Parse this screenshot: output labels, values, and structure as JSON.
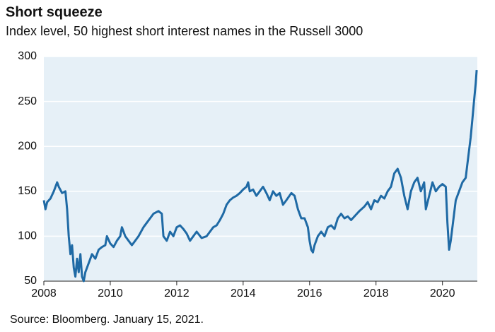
{
  "chart_data": {
    "type": "line",
    "title": "Short squeeze",
    "subtitle": "Index level, 50 highest short interest names in the Russell 3000",
    "source": "Source: Bloomberg. January 15, 2021.",
    "color": "#1f6aa5",
    "background": "#e6f0f7",
    "x": [
      2008.0,
      2008.05,
      2008.1,
      2008.2,
      2008.3,
      2008.4,
      2008.45,
      2008.55,
      2008.65,
      2008.7,
      2008.75,
      2008.8,
      2008.85,
      2008.9,
      2008.95,
      2009.0,
      2009.05,
      2009.1,
      2009.15,
      2009.2,
      2009.25,
      2009.35,
      2009.45,
      2009.55,
      2009.65,
      2009.75,
      2009.85,
      2009.9,
      2010.0,
      2010.1,
      2010.2,
      2010.3,
      2010.35,
      2010.45,
      2010.55,
      2010.65,
      2010.75,
      2010.85,
      2011.0,
      2011.1,
      2011.2,
      2011.3,
      2011.45,
      2011.55,
      2011.6,
      2011.7,
      2011.8,
      2011.9,
      2012.0,
      2012.1,
      2012.2,
      2012.3,
      2012.4,
      2012.5,
      2012.6,
      2012.75,
      2012.9,
      2013.0,
      2013.1,
      2013.2,
      2013.3,
      2013.4,
      2013.5,
      2013.6,
      2013.7,
      2013.8,
      2013.9,
      2014.0,
      2014.1,
      2014.15,
      2014.2,
      2014.3,
      2014.4,
      2014.5,
      2014.6,
      2014.7,
      2014.8,
      2014.9,
      2015.0,
      2015.1,
      2015.2,
      2015.3,
      2015.45,
      2015.55,
      2015.65,
      2015.75,
      2015.85,
      2015.95,
      2016.0,
      2016.05,
      2016.1,
      2016.15,
      2016.25,
      2016.35,
      2016.45,
      2016.55,
      2016.65,
      2016.75,
      2016.85,
      2016.95,
      2017.05,
      2017.15,
      2017.25,
      2017.35,
      2017.5,
      2017.65,
      2017.75,
      2017.85,
      2017.95,
      2018.05,
      2018.15,
      2018.25,
      2018.35,
      2018.45,
      2018.55,
      2018.65,
      2018.75,
      2018.85,
      2018.95,
      2019.05,
      2019.15,
      2019.25,
      2019.35,
      2019.45,
      2019.5,
      2019.6,
      2019.7,
      2019.8,
      2019.9,
      2020.0,
      2020.1,
      2020.15,
      2020.2,
      2020.25,
      2020.3,
      2020.4,
      2020.5,
      2020.6,
      2020.7,
      2020.75,
      2020.85,
      2020.9,
      2020.95,
      2021.0,
      2021.03
    ],
    "values": [
      140,
      130,
      138,
      142,
      150,
      160,
      155,
      148,
      150,
      130,
      100,
      80,
      90,
      65,
      55,
      75,
      60,
      80,
      55,
      50,
      60,
      70,
      80,
      75,
      85,
      88,
      90,
      100,
      92,
      88,
      95,
      100,
      110,
      100,
      95,
      90,
      95,
      100,
      110,
      115,
      120,
      125,
      128,
      125,
      100,
      95,
      105,
      100,
      110,
      112,
      108,
      103,
      95,
      100,
      105,
      98,
      100,
      105,
      110,
      112,
      118,
      125,
      135,
      140,
      143,
      145,
      148,
      152,
      155,
      160,
      150,
      152,
      145,
      150,
      155,
      148,
      140,
      150,
      145,
      148,
      135,
      140,
      148,
      145,
      130,
      120,
      120,
      110,
      95,
      85,
      82,
      90,
      100,
      105,
      100,
      110,
      112,
      108,
      120,
      125,
      120,
      122,
      118,
      122,
      128,
      133,
      138,
      130,
      140,
      138,
      145,
      142,
      150,
      155,
      170,
      175,
      165,
      145,
      130,
      150,
      160,
      165,
      150,
      160,
      130,
      145,
      160,
      150,
      155,
      158,
      155,
      115,
      85,
      95,
      110,
      140,
      150,
      160,
      165,
      180,
      210,
      230,
      250,
      270,
      285
    ],
    "xlim": [
      2008,
      2021.05
    ],
    "xticks": [
      2008,
      2010,
      2012,
      2014,
      2016,
      2018,
      2020
    ],
    "ylim": [
      50,
      300
    ],
    "yticks": [
      50,
      100,
      150,
      200,
      250,
      300
    ],
    "grid": true
  }
}
